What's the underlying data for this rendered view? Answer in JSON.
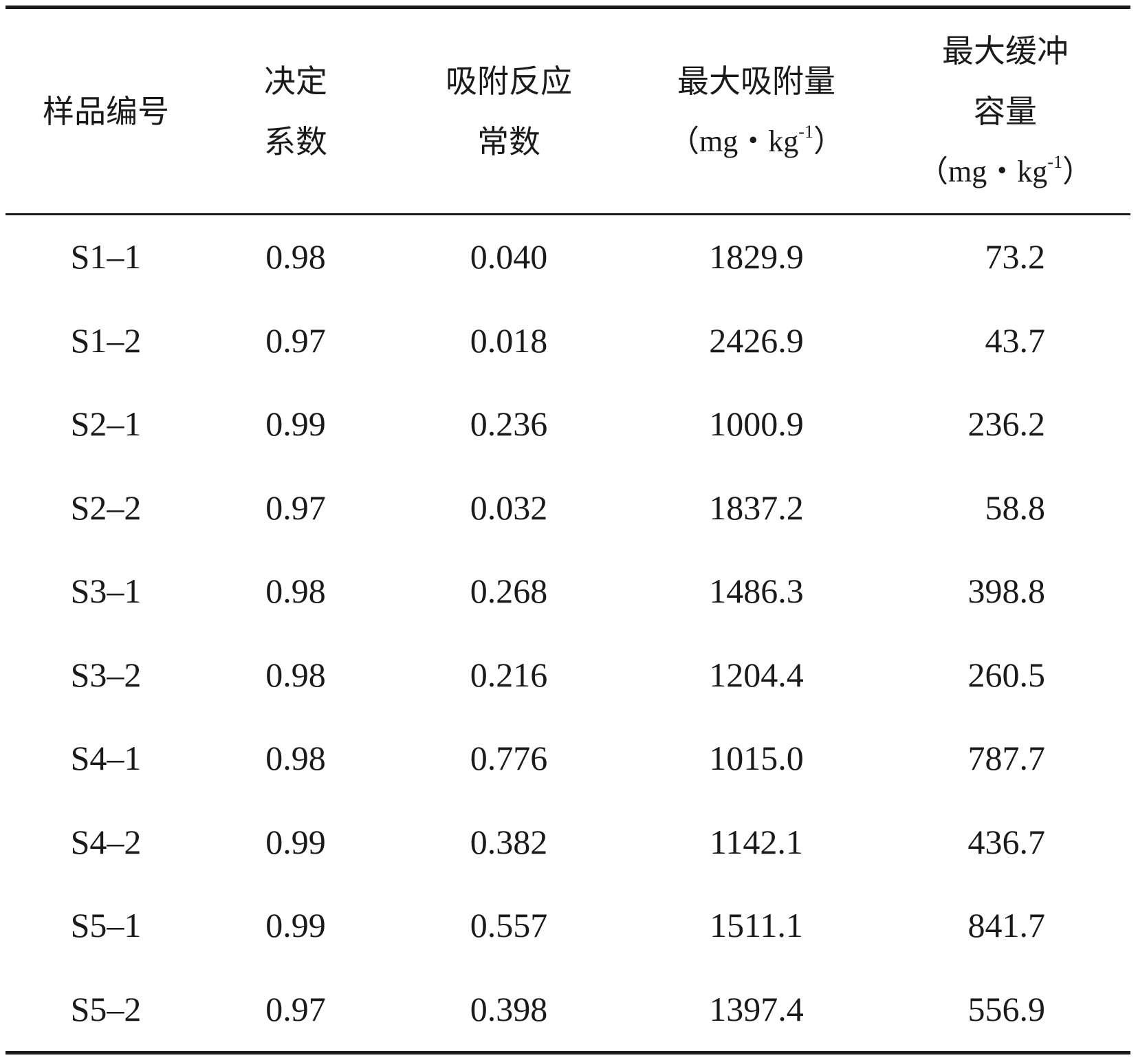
{
  "table": {
    "headers": {
      "sample_id": "样品编号",
      "r2_line1": "决定",
      "r2_line2": "系数",
      "k_line1": "吸附反应",
      "k_line2": "常数",
      "qmax_line1": "最大吸附量",
      "qmax_unit_open": "（mg・kg",
      "qmax_unit_exp": "-1",
      "qmax_unit_close": "）",
      "mbc_line1": "最大缓冲",
      "mbc_line2": "容量",
      "mbc_unit_open": "（mg・kg",
      "mbc_unit_exp": "-1",
      "mbc_unit_close": "）"
    },
    "rows": [
      {
        "sample": "S1–1",
        "r2": "0.98",
        "k": "0.040",
        "qmax": "1829.9",
        "mbc": "73.2"
      },
      {
        "sample": "S1–2",
        "r2": "0.97",
        "k": "0.018",
        "qmax": "2426.9",
        "mbc": "43.7"
      },
      {
        "sample": "S2–1",
        "r2": "0.99",
        "k": "0.236",
        "qmax": "1000.9",
        "mbc": "236.2"
      },
      {
        "sample": "S2–2",
        "r2": "0.97",
        "k": "0.032",
        "qmax": "1837.2",
        "mbc": "58.8"
      },
      {
        "sample": "S3–1",
        "r2": "0.98",
        "k": "0.268",
        "qmax": "1486.3",
        "mbc": "398.8"
      },
      {
        "sample": "S3–2",
        "r2": "0.98",
        "k": "0.216",
        "qmax": "1204.4",
        "mbc": "260.5"
      },
      {
        "sample": "S4–1",
        "r2": "0.98",
        "k": "0.776",
        "qmax": "1015.0",
        "mbc": "787.7"
      },
      {
        "sample": "S4–2",
        "r2": "0.99",
        "k": "0.382",
        "qmax": "1142.1",
        "mbc": "436.7"
      },
      {
        "sample": "S5–1",
        "r2": "0.99",
        "k": "0.557",
        "qmax": "1511.1",
        "mbc": "841.7"
      },
      {
        "sample": "S5–2",
        "r2": "0.97",
        "k": "0.398",
        "qmax": "1397.4",
        "mbc": "556.9"
      }
    ]
  }
}
